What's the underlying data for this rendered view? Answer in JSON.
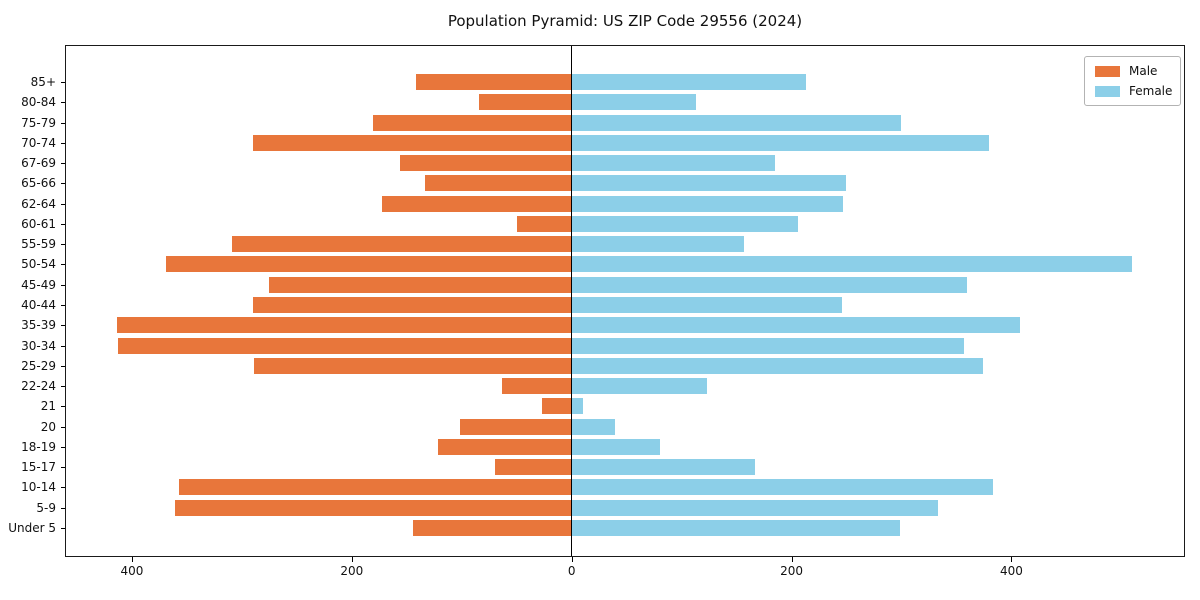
{
  "title": "Population Pyramid: US ZIP Code 29556 (2024)",
  "legend": {
    "male_label": "Male",
    "female_label": "Female"
  },
  "colors": {
    "male": "#e8763b",
    "female": "#8ccfe8",
    "axis": "#000000"
  },
  "chart_data": {
    "type": "bar",
    "variant": "population-pyramid-horizontal",
    "title": "Population Pyramid: US ZIP Code 29556 (2024)",
    "categories": [
      "85+",
      "80-84",
      "75-79",
      "70-74",
      "67-69",
      "65-66",
      "62-64",
      "60-61",
      "55-59",
      "50-54",
      "45-49",
      "40-44",
      "35-39",
      "30-34",
      "25-29",
      "22-24",
      "21",
      "20",
      "18-19",
      "15-17",
      "10-14",
      "5-9",
      "Under 5"
    ],
    "series": [
      {
        "name": "Male",
        "side": "left",
        "color": "#e8763b",
        "values": [
          142,
          84,
          181,
          290,
          156,
          133,
          173,
          50,
          309,
          369,
          275,
          290,
          414,
          413,
          289,
          63,
          27,
          102,
          122,
          70,
          357,
          361,
          144
        ]
      },
      {
        "name": "Female",
        "side": "right",
        "color": "#8ccfe8",
        "values": [
          213,
          113,
          300,
          380,
          185,
          250,
          247,
          206,
          157,
          510,
          360,
          246,
          408,
          357,
          374,
          123,
          10,
          39,
          80,
          167,
          383,
          333,
          299
        ]
      }
    ],
    "xlabel": "",
    "ylabel": "",
    "x_ticks": [
      -400,
      -200,
      0,
      200,
      400
    ],
    "x_tick_labels": [
      "400",
      "200",
      "0",
      "200",
      "400"
    ],
    "xlim": [
      -460,
      557
    ],
    "grid": false,
    "legend_position": "upper-right"
  }
}
